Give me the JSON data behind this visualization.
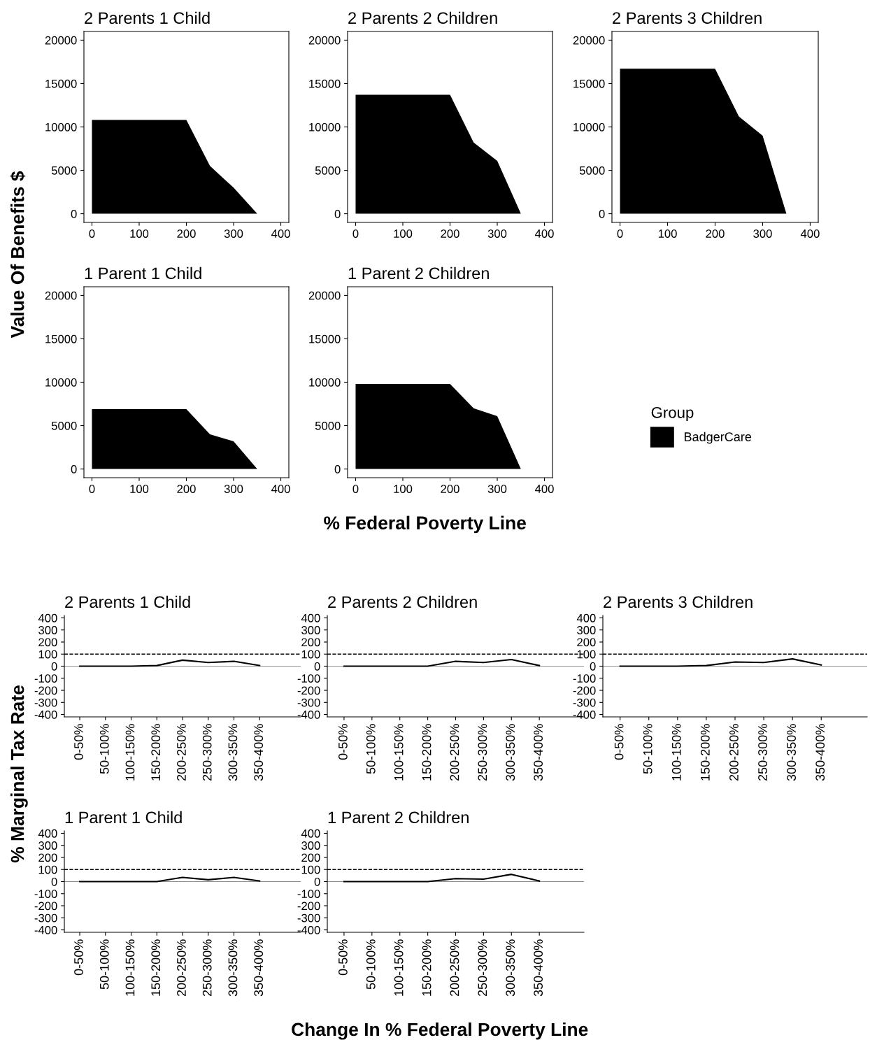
{
  "chart_data": [
    {
      "type": "area",
      "title": "2 Parents 1 Child",
      "ylabel": "Value Of Benefits $",
      "legend_title": "Group",
      "legend": "right",
      "x": [
        0,
        50,
        100,
        150,
        200,
        250,
        280,
        300,
        350
      ],
      "xlim": [
        -17,
        417
      ],
      "xticks": [
        0,
        100,
        200,
        300,
        400
      ],
      "ylim": [
        -1000,
        21000
      ],
      "yticks": [
        0,
        5000,
        10000,
        15000,
        20000
      ],
      "series": [
        {
          "name": "BadgerCare",
          "color": "#000000",
          "values": [
            10800,
            10800,
            10800,
            10800,
            10800,
            5500,
            4000,
            3000,
            0
          ]
        }
      ]
    },
    {
      "type": "area",
      "title": "2 Parents 2 Children",
      "x": [
        0,
        50,
        100,
        150,
        200,
        250,
        300,
        350
      ],
      "xlim": [
        -17,
        417
      ],
      "xticks": [
        0,
        100,
        200,
        300,
        400
      ],
      "ylim": [
        -1000,
        21000
      ],
      "yticks": [
        0,
        5000,
        10000,
        15000,
        20000
      ],
      "series": [
        {
          "color": "#000000",
          "values": [
            13700,
            13700,
            13700,
            13700,
            13700,
            8200,
            6100,
            0
          ]
        }
      ]
    },
    {
      "type": "area",
      "title": "2 Parents 3 Children",
      "x": [
        0,
        50,
        100,
        150,
        200,
        250,
        300,
        350
      ],
      "xlim": [
        -17,
        417
      ],
      "xticks": [
        0,
        100,
        200,
        300,
        400
      ],
      "ylim": [
        -1000,
        21000
      ],
      "yticks": [
        0,
        5000,
        10000,
        15000,
        20000
      ],
      "series": [
        {
          "color": "#000000",
          "values": [
            16700,
            16700,
            16700,
            16700,
            16700,
            11200,
            9000,
            0
          ]
        }
      ]
    },
    {
      "type": "area",
      "title": "1 Parent 1 Child",
      "x": [
        0,
        50,
        100,
        150,
        200,
        250,
        300,
        350
      ],
      "xlim": [
        -17,
        417
      ],
      "xticks": [
        0,
        100,
        200,
        300,
        400
      ],
      "ylim": [
        -1000,
        21000
      ],
      "yticks": [
        0,
        5000,
        10000,
        15000,
        20000
      ],
      "series": [
        {
          "color": "#000000",
          "values": [
            6900,
            6900,
            6900,
            6900,
            6900,
            4000,
            3200,
            0
          ]
        }
      ]
    },
    {
      "type": "area",
      "title": "1 Parent 2 Children",
      "xlabel": "% Federal Poverty Line",
      "x": [
        0,
        50,
        100,
        150,
        200,
        250,
        300,
        350
      ],
      "xlim": [
        -17,
        417
      ],
      "xticks": [
        0,
        100,
        200,
        300,
        400
      ],
      "ylim": [
        -1000,
        21000
      ],
      "yticks": [
        0,
        5000,
        10000,
        15000,
        20000
      ],
      "series": [
        {
          "color": "#000000",
          "values": [
            9800,
            9800,
            9800,
            9800,
            9800,
            7000,
            6100,
            0
          ]
        }
      ]
    },
    {
      "type": "line",
      "title": "2 Parents 1 Child",
      "ylabel": "% Marginal Tax Rate",
      "categories": [
        "0-50%",
        "50-100%",
        "100-150%",
        "150-200%",
        "200-250%",
        "250-300%",
        "300-350%",
        "350-400%"
      ],
      "ylim": [
        -420,
        420
      ],
      "yticks": [
        -400,
        -300,
        -200,
        -100,
        0,
        100,
        200,
        300,
        400
      ],
      "ref_lines": [
        {
          "axis": "y",
          "value": 100,
          "line_style": "dashed",
          "color": "#000000"
        },
        {
          "axis": "y",
          "value": 0,
          "line_style": "solid",
          "color": "#777777"
        }
      ],
      "series": [
        {
          "color": "#000000",
          "values": [
            0,
            0,
            0,
            5,
            50,
            30,
            40,
            5
          ]
        }
      ]
    },
    {
      "type": "line",
      "title": "2 Parents 2 Children",
      "categories": [
        "0-50%",
        "50-100%",
        "100-150%",
        "150-200%",
        "200-250%",
        "250-300%",
        "300-350%",
        "350-400%"
      ],
      "ylim": [
        -420,
        420
      ],
      "yticks": [
        -400,
        -300,
        -200,
        -100,
        0,
        100,
        200,
        300,
        400
      ],
      "ref_lines": [
        {
          "axis": "y",
          "value": 100,
          "line_style": "dashed",
          "color": "#000000"
        },
        {
          "axis": "y",
          "value": 0,
          "line_style": "solid",
          "color": "#777777"
        }
      ],
      "series": [
        {
          "color": "#000000",
          "values": [
            0,
            0,
            0,
            0,
            40,
            30,
            55,
            5
          ]
        }
      ]
    },
    {
      "type": "line",
      "title": "2 Parents 3 Children",
      "categories": [
        "0-50%",
        "50-100%",
        "100-150%",
        "150-200%",
        "200-250%",
        "250-300%",
        "300-350%",
        "350-400%"
      ],
      "ylim": [
        -420,
        420
      ],
      "yticks": [
        -400,
        -300,
        -200,
        -100,
        0,
        100,
        200,
        300,
        400
      ],
      "ref_lines": [
        {
          "axis": "y",
          "value": 100,
          "line_style": "dashed",
          "color": "#000000"
        },
        {
          "axis": "y",
          "value": 0,
          "line_style": "solid",
          "color": "#777777"
        }
      ],
      "series": [
        {
          "color": "#000000",
          "values": [
            0,
            0,
            0,
            5,
            35,
            30,
            60,
            10
          ]
        }
      ]
    },
    {
      "type": "line",
      "title": "1 Parent 1 Child",
      "categories": [
        "0-50%",
        "50-100%",
        "100-150%",
        "150-200%",
        "200-250%",
        "250-300%",
        "300-350%",
        "350-400%"
      ],
      "ylim": [
        -420,
        420
      ],
      "yticks": [
        -400,
        -300,
        -200,
        -100,
        0,
        100,
        200,
        300,
        400
      ],
      "ref_lines": [
        {
          "axis": "y",
          "value": 100,
          "line_style": "dashed",
          "color": "#000000"
        },
        {
          "axis": "y",
          "value": 0,
          "line_style": "solid",
          "color": "#777777"
        }
      ],
      "series": [
        {
          "color": "#000000",
          "values": [
            0,
            0,
            0,
            0,
            35,
            15,
            35,
            5
          ]
        }
      ]
    },
    {
      "type": "line",
      "title": "1 Parent 2 Children",
      "xlabel": "Change In % Federal Poverty Line",
      "categories": [
        "0-50%",
        "50-100%",
        "100-150%",
        "150-200%",
        "200-250%",
        "250-300%",
        "300-350%",
        "350-400%"
      ],
      "ylim": [
        -420,
        420
      ],
      "yticks": [
        -400,
        -300,
        -200,
        -100,
        0,
        100,
        200,
        300,
        400
      ],
      "ref_lines": [
        {
          "axis": "y",
          "value": 100,
          "line_style": "dashed",
          "color": "#000000"
        },
        {
          "axis": "y",
          "value": 0,
          "line_style": "solid",
          "color": "#777777"
        }
      ],
      "series": [
        {
          "color": "#000000",
          "values": [
            0,
            0,
            0,
            0,
            25,
            20,
            60,
            5
          ]
        }
      ]
    }
  ]
}
